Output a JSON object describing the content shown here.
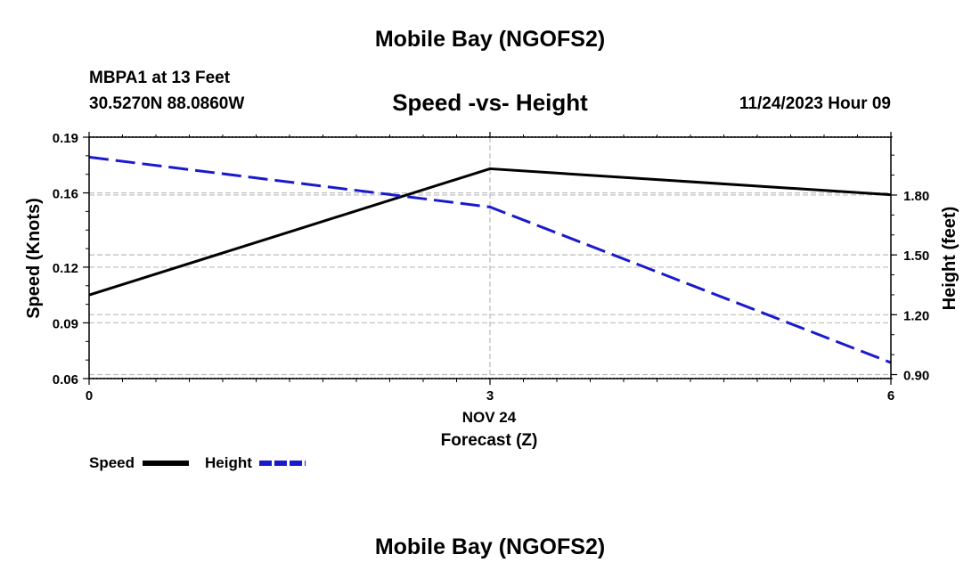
{
  "header": {
    "title": "Mobile Bay (NGOFS2)",
    "station": "MBPA1 at 13 Feet",
    "coords": "30.5270N  88.0860W",
    "subtitle": "Speed -vs- Height",
    "datetime": "11/24/2023 Hour 09"
  },
  "footer": {
    "title": "Mobile Bay (NGOFS2)"
  },
  "chart_data": {
    "type": "line",
    "title": "Speed -vs- Height",
    "xlabel": "Forecast (Z)",
    "date_label": "NOV 24",
    "ylabel_left": "Speed (Knots)",
    "ylabel_right": "Height (feet)",
    "x_ticks": [
      "0",
      "3",
      "6"
    ],
    "xlim": [
      0,
      6
    ],
    "ylim_left": [
      0.06,
      0.19
    ],
    "ylim_right": [
      0.88,
      2.09
    ],
    "left_ticks": [
      "0.06",
      "0.09",
      "0.12",
      "0.16",
      "0.19"
    ],
    "left_tick_values": [
      0.06,
      0.09,
      0.12,
      0.16,
      0.19
    ],
    "right_ticks": [
      "0.90",
      "1.20",
      "1.50",
      "1.80"
    ],
    "right_tick_values": [
      0.9,
      1.2,
      1.5,
      1.8
    ],
    "series": [
      {
        "name": "Speed",
        "axis": "left",
        "color": "#000000",
        "style": "solid",
        "x": [
          0,
          3,
          6
        ],
        "values": [
          0.105,
          0.173,
          0.159
        ]
      },
      {
        "name": "Height",
        "axis": "right",
        "color": "#1a1acc",
        "style": "dashed",
        "x": [
          0,
          3,
          6
        ],
        "values": [
          1.99,
          1.74,
          0.96
        ]
      }
    ],
    "legend": [
      {
        "label": "Speed",
        "color": "#000000",
        "style": "solid"
      },
      {
        "label": "Height",
        "color": "#1a1acc",
        "style": "dashed"
      }
    ],
    "legend_position": "bottom-left",
    "grid": true
  }
}
